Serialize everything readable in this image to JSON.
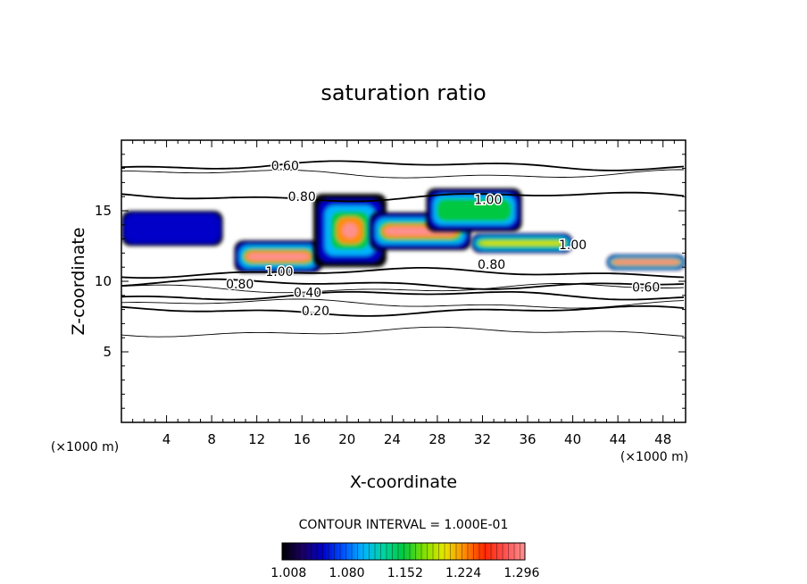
{
  "chart_data": {
    "type": "heatmap",
    "title": "saturation ratio",
    "xlabel": "X-coordinate",
    "ylabel": "Z-coordinate",
    "x_unit": "(×1000 m)",
    "z_unit": "(×1000 m)",
    "xlim": [
      0,
      50
    ],
    "ylim": [
      0,
      20
    ],
    "x_ticks": [
      "4",
      "8",
      "12",
      "16",
      "20",
      "24",
      "28",
      "32",
      "36",
      "40",
      "44",
      "48"
    ],
    "y_ticks": [
      "5",
      "10",
      "15"
    ],
    "contour_interval_label": "CONTOUR INTERVAL = 1.000E-01",
    "contour_labels": [
      {
        "text": "0.60",
        "x": 14.5,
        "z": 18.2
      },
      {
        "text": "0.80",
        "x": 16.0,
        "z": 16.0
      },
      {
        "text": "1.00",
        "x": 32.5,
        "z": 15.8
      },
      {
        "text": "1.00",
        "x": 40.0,
        "z": 12.6
      },
      {
        "text": "1.00",
        "x": 14.0,
        "z": 10.7
      },
      {
        "text": "0.80",
        "x": 10.5,
        "z": 9.8
      },
      {
        "text": "0.80",
        "x": 32.8,
        "z": 11.2
      },
      {
        "text": "0.40",
        "x": 16.5,
        "z": 9.2
      },
      {
        "text": "0.20",
        "x": 17.2,
        "z": 7.9
      },
      {
        "text": "0.60",
        "x": 46.5,
        "z": 9.6
      }
    ],
    "contour_levels": [
      {
        "level": 0.6,
        "z": 18.2
      },
      {
        "level": 0.7,
        "z": 17.6
      },
      {
        "level": 0.8,
        "z": 16.0
      },
      {
        "level": 0.8,
        "z": 10.6
      },
      {
        "level": 0.6,
        "z": 9.8
      },
      {
        "level": 0.5,
        "z": 9.5
      },
      {
        "level": 0.4,
        "z": 9.0
      },
      {
        "level": 0.3,
        "z": 8.4
      },
      {
        "level": 0.2,
        "z": 7.9
      },
      {
        "level": 0.1,
        "z": 6.4
      }
    ],
    "supersaturated_regions": [
      {
        "x": [
          10.0,
          17.8
        ],
        "z": [
          10.6,
          12.9
        ],
        "peak": 1.3
      },
      {
        "x": [
          17.0,
          23.5
        ],
        "z": [
          11.0,
          16.2
        ],
        "peak": 1.3
      },
      {
        "x": [
          22.0,
          31.0
        ],
        "z": [
          12.2,
          14.9
        ],
        "peak": 1.3
      },
      {
        "x": [
          27.0,
          35.5
        ],
        "z": [
          13.5,
          16.6
        ],
        "peak": 1.15
      },
      {
        "x": [
          31.0,
          40.0
        ],
        "z": [
          12.0,
          13.4
        ],
        "peak": 1.2
      },
      {
        "x": [
          43.0,
          50.0
        ],
        "z": [
          10.8,
          11.9
        ],
        "peak": 1.3
      },
      {
        "x": [
          0.0,
          9.0
        ],
        "z": [
          12.5,
          15.0
        ],
        "peak": 1.05
      }
    ],
    "colorbar": {
      "ticks": [
        "1.008",
        "1.080",
        "1.152",
        "1.224",
        "1.296"
      ],
      "range": [
        1.0,
        1.3
      ],
      "colors": [
        "#000000",
        "#1a0060",
        "#0000c8",
        "#0050ff",
        "#00b4ff",
        "#00d4a0",
        "#00c840",
        "#80e000",
        "#e6e600",
        "#ff8c00",
        "#ff2800",
        "#ff5050",
        "#ff9090"
      ]
    }
  }
}
